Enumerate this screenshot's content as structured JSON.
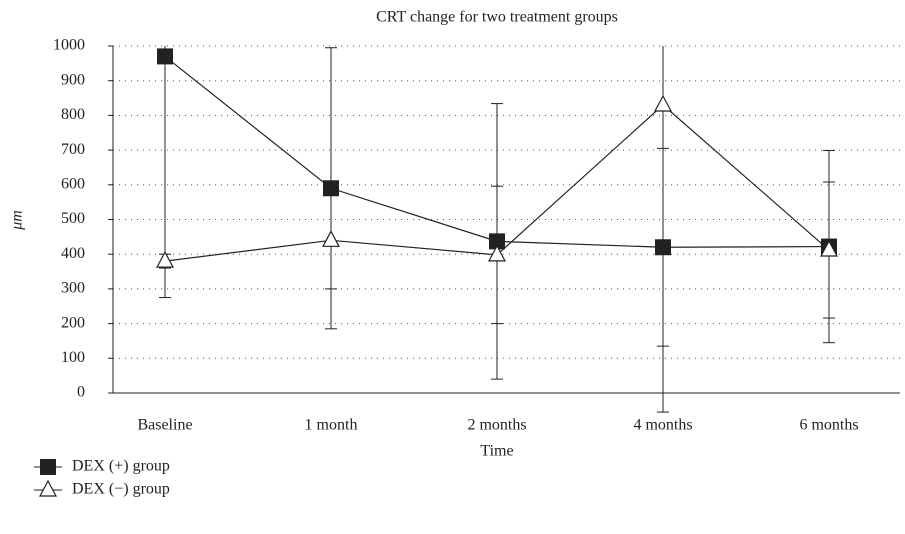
{
  "chart_data": {
    "type": "line",
    "title": "CRT change for two treatment groups",
    "x_label": "Time",
    "y_label": "μm",
    "categories": [
      "Baseline",
      "1 month",
      "2 months",
      "4 months",
      "6 months"
    ],
    "series": [
      {
        "name": "DEX (+) group",
        "color": "#222222",
        "marker": "square",
        "values": [
          970,
          590,
          437,
          420,
          422
        ],
        "errors": [
          695,
          405,
          397,
          285,
          277
        ]
      },
      {
        "name": "DEX (−) group",
        "color": "#222222",
        "marker": "triangle",
        "values": [
          380,
          440,
          398,
          830,
          412
        ],
        "errors": [
          20,
          140,
          198,
          885,
          196
        ]
      }
    ],
    "ylim": [
      0,
      1000
    ],
    "yticks": [
      0,
      100,
      200,
      300,
      400,
      500,
      600,
      700,
      800,
      900,
      1000
    ],
    "grid": true
  }
}
